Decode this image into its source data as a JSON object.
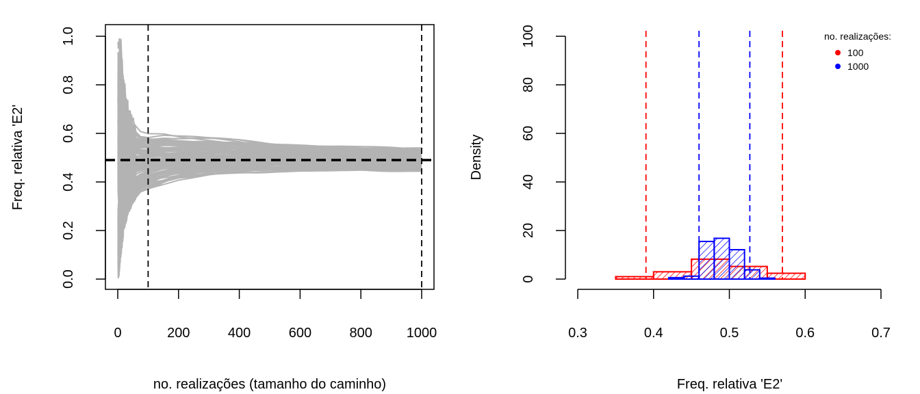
{
  "chart_data": [
    {
      "type": "line",
      "xlabel": "no. realizações (tamanho do caminho)",
      "ylabel": "Freq. relativa 'E2'",
      "xlim": [
        0,
        1000
      ],
      "ylim": [
        0,
        1
      ],
      "x_ticks": [
        0,
        200,
        400,
        600,
        800,
        1000
      ],
      "y_ticks": [
        0.0,
        0.2,
        0.4,
        0.6,
        0.8,
        1.0
      ],
      "x_tick_labels": [
        "0",
        "200",
        "400",
        "600",
        "800",
        "1000"
      ],
      "y_tick_labels": [
        "0.0",
        "0.2",
        "0.4",
        "0.6",
        "0.8",
        "1.0"
      ],
      "reference_line_y": 0.49,
      "vertical_lines_x": [
        100,
        1000
      ],
      "envelope": {
        "x": [
          3,
          10,
          20,
          35,
          50,
          75,
          100,
          150,
          200,
          300,
          400,
          500,
          600,
          700,
          800,
          900,
          1000
        ],
        "upper": [
          1.0,
          1.0,
          0.85,
          0.72,
          0.66,
          0.62,
          0.61,
          0.61,
          0.6,
          0.59,
          0.58,
          0.565,
          0.56,
          0.555,
          0.55,
          0.548,
          0.545
        ],
        "lower": [
          0.0,
          0.08,
          0.2,
          0.27,
          0.31,
          0.35,
          0.36,
          0.38,
          0.4,
          0.42,
          0.43,
          0.435,
          0.44,
          0.44,
          0.44,
          0.44,
          0.44
        ]
      },
      "path_count": 100,
      "grid": false
    },
    {
      "type": "bar",
      "xlabel": "Freq. relativa 'E2'",
      "ylabel": "Density",
      "xlim": [
        0.3,
        0.7
      ],
      "ylim": [
        0,
        100
      ],
      "x_ticks": [
        0.3,
        0.4,
        0.5,
        0.6,
        0.7
      ],
      "y_ticks": [
        0,
        20,
        40,
        60,
        80,
        100
      ],
      "x_tick_labels": [
        "0.3",
        "0.4",
        "0.5",
        "0.6",
        "0.7"
      ],
      "y_tick_labels": [
        "0",
        "20",
        "40",
        "60",
        "80",
        "100"
      ],
      "legend_title": "no. realizações:",
      "legend_position": "top-right",
      "series": [
        {
          "name": "100",
          "color": "#ff0000",
          "bin_edges": [
            0.35,
            0.4,
            0.45,
            0.5,
            0.55,
            0.6
          ],
          "density": [
            1.0,
            3.0,
            8.2,
            5.2,
            2.4
          ],
          "quantile_lines": [
            0.39,
            0.57
          ]
        },
        {
          "name": "1000",
          "color": "#0000ff",
          "bin_edges": [
            0.42,
            0.44,
            0.46,
            0.48,
            0.5,
            0.52,
            0.54,
            0.56
          ],
          "density": [
            0.6,
            1.2,
            15.5,
            16.8,
            12.1,
            3.8,
            0.4
          ],
          "quantile_lines": [
            0.46,
            0.527
          ]
        }
      ],
      "grid": false
    }
  ]
}
